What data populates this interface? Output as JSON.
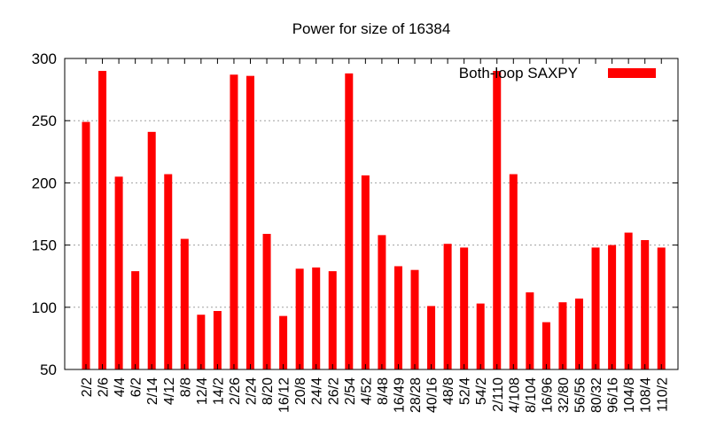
{
  "chart_data": {
    "type": "bar",
    "title": "Power for size of 16384",
    "xlabel": "",
    "ylabel": "",
    "ylim": [
      50,
      300
    ],
    "yticks": [
      50,
      100,
      150,
      200,
      250,
      300
    ],
    "grid": "horizontal-dotted",
    "legend": "top-right",
    "categories": [
      "2/2",
      "2/6",
      "4/4",
      "6/2",
      "2/14",
      "4/12",
      "8/8",
      "12/4",
      "14/2",
      "2/26",
      "2/24",
      "8/20",
      "16/12",
      "20/8",
      "24/4",
      "26/2",
      "2/54",
      "4/52",
      "8/48",
      "16/49",
      "28/28",
      "40/16",
      "48/8",
      "52/4",
      "54/2",
      "2/110",
      "4/108",
      "8/104",
      "16/96",
      "32/80",
      "56/56",
      "80/32",
      "96/16",
      "104/8",
      "108/4",
      "110/2"
    ],
    "series": [
      {
        "name": "Both-loop SAXPY",
        "color": "#ff0000",
        "values": [
          249,
          290,
          205,
          129,
          241,
          207,
          155,
          94,
          97,
          287,
          286,
          159,
          93,
          131,
          132,
          129,
          288,
          206,
          158,
          133,
          130,
          101,
          151,
          148,
          103,
          290,
          207,
          112,
          88,
          104,
          107,
          148,
          150,
          160,
          154,
          148
        ]
      }
    ]
  }
}
